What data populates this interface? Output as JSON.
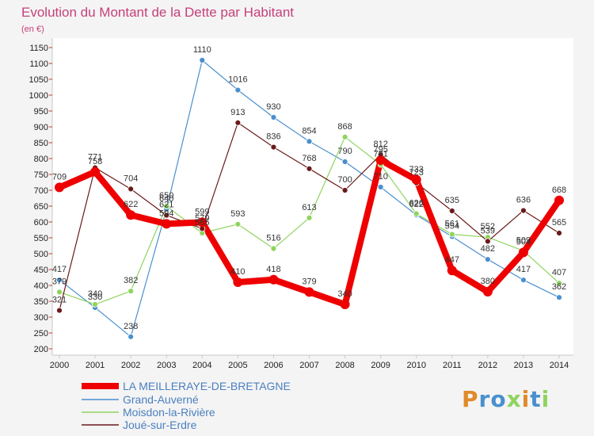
{
  "chart_data": {
    "type": "line",
    "title": "Evolution du Montant de la Dette par Habitant",
    "subtitle": "(en €)",
    "categories": [
      "2000",
      "2001",
      "2002",
      "2003",
      "2004",
      "2005",
      "2006",
      "2007",
      "2008",
      "2009",
      "2010",
      "2011",
      "2012",
      "2013",
      "2014"
    ],
    "y_ticks": [
      200,
      250,
      300,
      350,
      400,
      450,
      500,
      550,
      600,
      650,
      700,
      750,
      800,
      850,
      900,
      950,
      1000,
      1050,
      1100,
      1150
    ],
    "ylim": [
      200,
      1150
    ],
    "grid": false,
    "legend_position": "bottom-left",
    "series": [
      {
        "name": "LA MEILLERAYE-DE-BRETAGNE",
        "color": "#ee0000",
        "values": [
          709,
          758,
          622,
          594,
          599,
          410,
          418,
          379,
          340,
          795,
          733,
          447,
          380,
          504,
          668
        ]
      },
      {
        "name": "Grand-Auverné",
        "color": "#4a8fce",
        "values": [
          417,
          330,
          238,
          640,
          1110,
          1016,
          930,
          854,
          790,
          710,
          622,
          554,
          482,
          417,
          362
        ]
      },
      {
        "name": "Moisdon-la-Rivière",
        "color": "#8ed45e",
        "values": [
          379,
          340,
          382,
          650,
          565,
          593,
          516,
          613,
          868,
          781,
          626,
          561,
          552,
          509,
          407
        ]
      },
      {
        "name": "Joué-sur-Erdre",
        "color": "#6a1a1a",
        "values": [
          321,
          771,
          704,
          621,
          579,
          913,
          836,
          768,
          700,
          812,
          723,
          635,
          539,
          636,
          565
        ]
      }
    ]
  },
  "logo": {
    "text": "Proxiti"
  }
}
